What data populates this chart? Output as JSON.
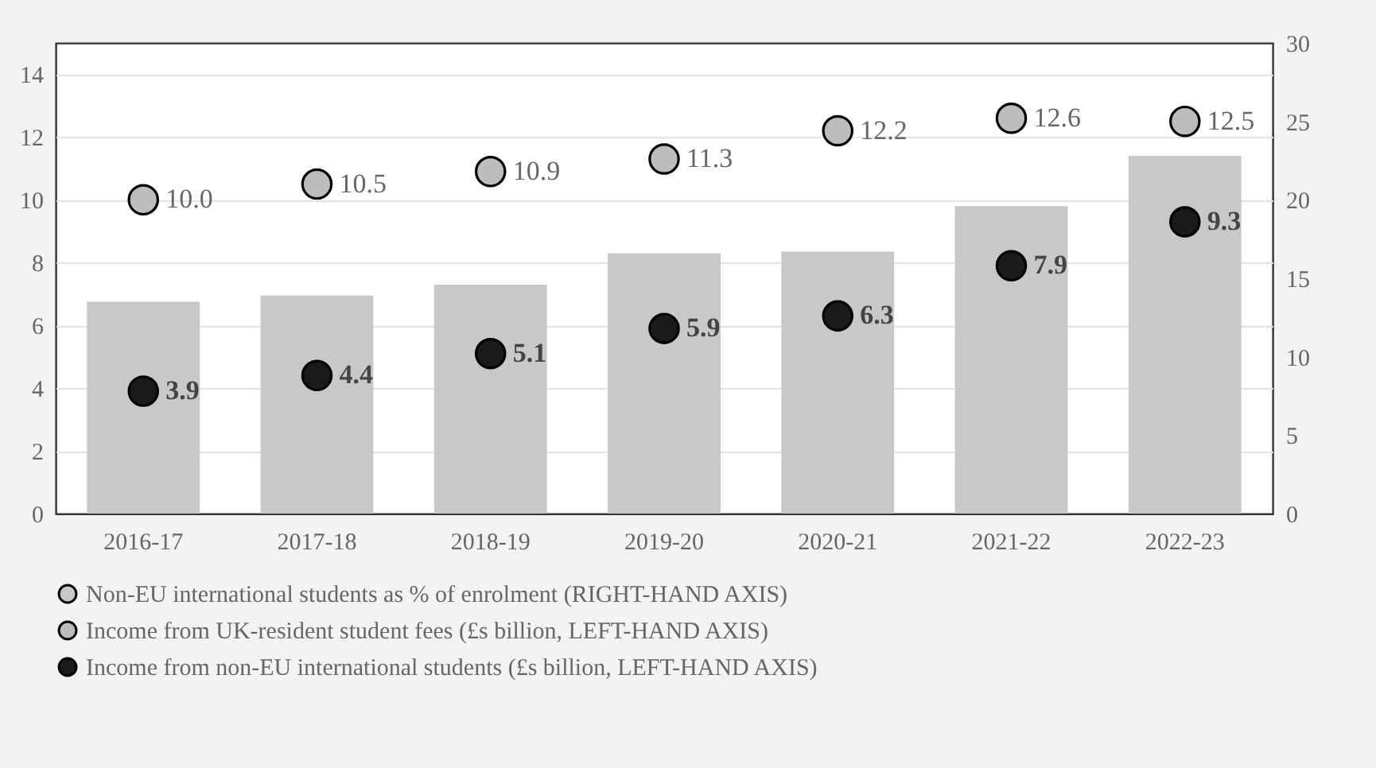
{
  "chart_data": {
    "type": "bar",
    "categories": [
      "2016-17",
      "2017-18",
      "2018-19",
      "2019-20",
      "2020-21",
      "2021-22",
      "2022-23"
    ],
    "series": [
      {
        "name": "Non-EU international students as % of enrolment (RIGHT-HAND AXIS)",
        "type": "bar",
        "axis": "y2",
        "color": "#c8c8c8",
        "values": [
          13.5,
          13.9,
          14.6,
          16.6,
          16.7,
          19.6,
          22.8
        ]
      },
      {
        "name": "Income from UK-resident student fees (£s billion, LEFT-HAND AXIS)",
        "type": "scatter",
        "color": "#bdbdbd",
        "values": [
          10.0,
          10.5,
          10.9,
          11.3,
          12.2,
          12.6,
          12.5
        ],
        "value_labels": [
          "10.0",
          "10.5",
          "10.9",
          "11.3",
          "12.2",
          "12.6",
          "12.5"
        ]
      },
      {
        "name": "Income from non-EU international students (£s billion, LEFT-HAND AXIS)",
        "type": "scatter",
        "color": "#1a1a1a",
        "values": [
          3.9,
          4.4,
          5.1,
          5.9,
          6.3,
          7.9,
          9.3
        ],
        "value_labels": [
          "3.9",
          "4.4",
          "5.1",
          "5.9",
          "6.3",
          "7.9",
          "9.3"
        ]
      }
    ],
    "ylim": [
      0,
      15
    ],
    "yticks": [
      0,
      2,
      4,
      6,
      8,
      10,
      12,
      14
    ],
    "y2lim": [
      0,
      30
    ],
    "y2ticks": [
      0,
      5,
      10,
      15,
      20,
      25,
      30
    ],
    "grid": "y",
    "legend": "bottom",
    "marker": "circle"
  }
}
